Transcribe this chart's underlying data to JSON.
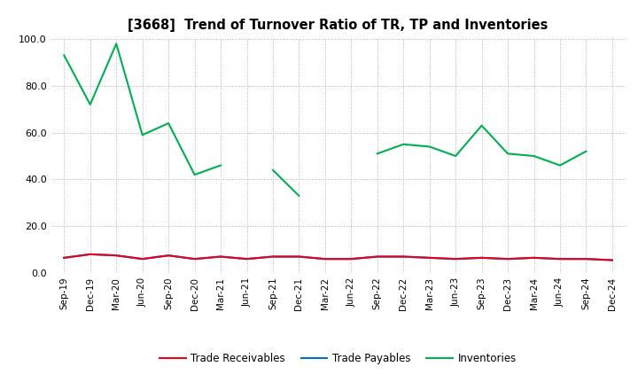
{
  "title": "[3668]  Trend of Turnover Ratio of TR, TP and Inventories",
  "x_labels": [
    "Sep-19",
    "Dec-19",
    "Mar-20",
    "Jun-20",
    "Sep-20",
    "Dec-20",
    "Mar-21",
    "Jun-21",
    "Sep-21",
    "Dec-21",
    "Mar-22",
    "Jun-22",
    "Sep-22",
    "Dec-22",
    "Mar-23",
    "Jun-23",
    "Sep-23",
    "Dec-23",
    "Mar-24",
    "Jun-24",
    "Sep-24",
    "Dec-24"
  ],
  "trade_receivables": [
    6.5,
    8.0,
    7.5,
    6.0,
    7.5,
    6.0,
    7.0,
    6.0,
    7.0,
    7.0,
    6.0,
    6.0,
    7.0,
    7.0,
    6.5,
    6.0,
    6.5,
    6.0,
    6.5,
    6.0,
    6.0,
    5.5
  ],
  "trade_payables": [
    6.5,
    8.0,
    7.5,
    6.0,
    7.5,
    6.0,
    7.0,
    6.0,
    7.0,
    7.0,
    6.0,
    6.0,
    7.0,
    7.0,
    6.5,
    6.0,
    6.5,
    6.0,
    6.5,
    6.0,
    6.0,
    5.5
  ],
  "inventories": [
    93.0,
    72.0,
    98.0,
    59.0,
    64.0,
    42.0,
    46.0,
    null,
    44.0,
    33.0,
    null,
    null,
    51.0,
    55.0,
    54.0,
    50.0,
    63.0,
    51.0,
    50.0,
    46.0,
    52.0,
    null
  ],
  "tr_color": "#e8001c",
  "tp_color": "#0070c0",
  "inv_color": "#00b050",
  "ylim": [
    0,
    100
  ],
  "yticks": [
    0.0,
    20.0,
    40.0,
    60.0,
    80.0,
    100.0
  ],
  "bg_color": "#ffffff",
  "grid_color": "#b0b0b0",
  "legend_labels": [
    "Trade Receivables",
    "Trade Payables",
    "Inventories"
  ]
}
